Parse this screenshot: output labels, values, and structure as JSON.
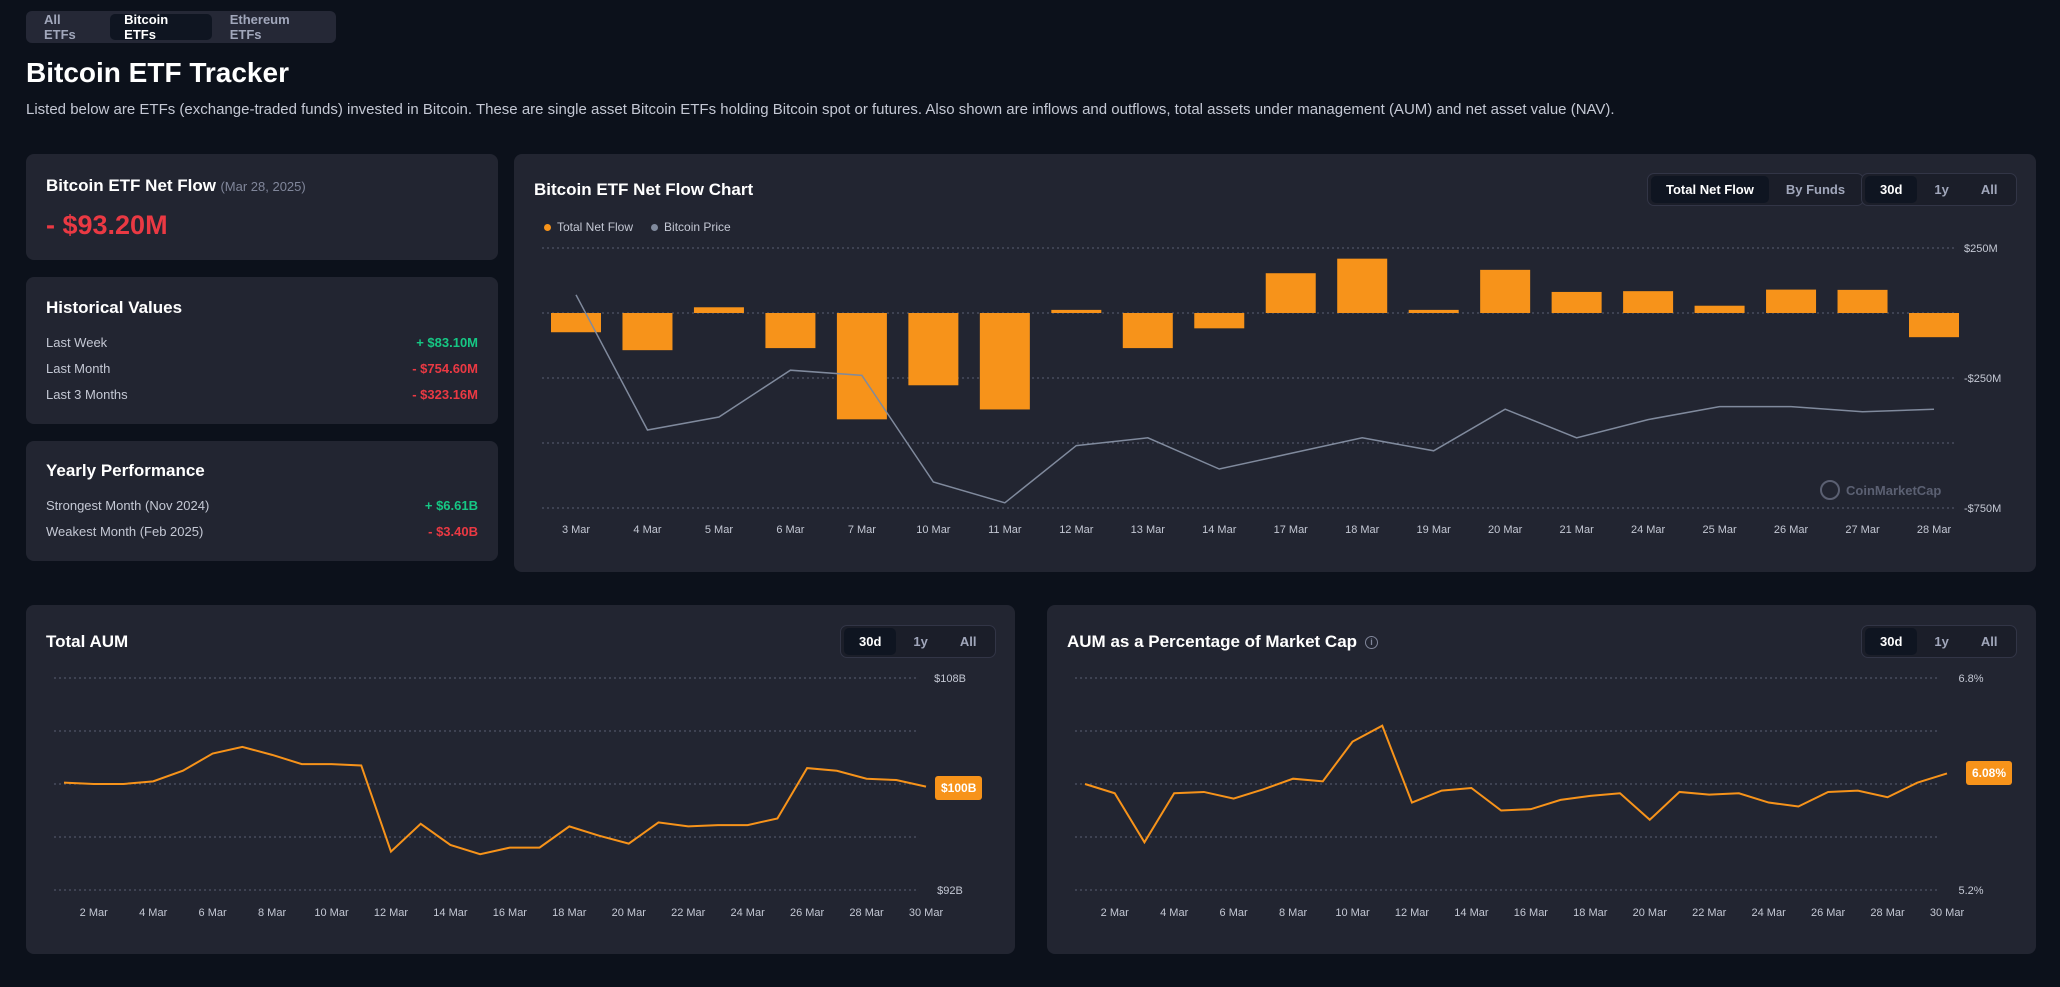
{
  "tabs": [
    "All ETFs",
    "Bitcoin ETFs",
    "Ethereum ETFs"
  ],
  "page": {
    "title": "Bitcoin ETF Tracker",
    "description": "Listed below are ETFs (exchange-traded funds) invested in Bitcoin. These are single asset Bitcoin ETFs holding Bitcoin spot or futures. Also shown are inflows and outflows, total assets under management (AUM) and net asset value (NAV)."
  },
  "net_flow_card": {
    "title": "Bitcoin ETF Net Flow",
    "date": "(Mar 28, 2025)",
    "value": "- $93.20M"
  },
  "historical": {
    "title": "Historical Values",
    "rows": [
      {
        "label": "Last Week",
        "value": "+ $83.10M"
      },
      {
        "label": "Last Month",
        "value": "- $754.60M"
      },
      {
        "label": "Last 3 Months",
        "value": "- $323.16M"
      }
    ]
  },
  "yearly": {
    "title": "Yearly Performance",
    "rows": [
      {
        "label": "Strongest Month (Nov 2024)",
        "value": "+ $6.61B"
      },
      {
        "label": "Weakest Month (Feb 2025)",
        "value": "- $3.40B"
      }
    ]
  },
  "net_flow_chart": {
    "title": "Bitcoin ETF Net Flow Chart",
    "view_toggle": [
      "Total Net Flow",
      "By Funds"
    ],
    "range_toggle": [
      "30d",
      "1y",
      "All"
    ],
    "legend": [
      "Total Net Flow",
      "Bitcoin Price"
    ],
    "watermark": "CoinMarketCap"
  },
  "aum_chart": {
    "title": "Total AUM",
    "range_toggle": [
      "30d",
      "1y",
      "All"
    ],
    "current_label": "$100B"
  },
  "aum_pct_chart": {
    "title": "AUM as a Percentage of Market Cap",
    "info_icon": "info-icon",
    "range_toggle": [
      "30d",
      "1y",
      "All"
    ],
    "current_label": "6.08%"
  },
  "colors": {
    "bg": "#0c111b",
    "card": "#222531",
    "accent": "#f7931a",
    "neg": "#ea3943",
    "pos": "#16c784",
    "price_line": "#808a9d"
  },
  "chart_data": [
    {
      "type": "bar",
      "title": "Bitcoin ETF Net Flow Chart",
      "categories": [
        "3 Mar",
        "4 Mar",
        "5 Mar",
        "6 Mar",
        "7 Mar",
        "10 Mar",
        "11 Mar",
        "12 Mar",
        "13 Mar",
        "14 Mar",
        "17 Mar",
        "18 Mar",
        "19 Mar",
        "20 Mar",
        "21 Mar",
        "24 Mar",
        "25 Mar",
        "26 Mar",
        "27 Mar",
        "28 Mar"
      ],
      "series": [
        {
          "name": "Total Net Flow",
          "values": [
            -74,
            -143,
            22,
            -135,
            -409,
            -278,
            -371,
            12,
            -135,
            -59,
            153,
            209,
            12,
            166,
            81,
            84,
            28,
            90,
            89,
            -93
          ]
        },
        {
          "name": "Bitcoin Price",
          "values": [
            0.82,
            0.3,
            0.35,
            0.53,
            0.51,
            0.1,
            0.02,
            0.24,
            0.27,
            0.15,
            0.21,
            0.27,
            0.22,
            0.38,
            0.27,
            0.34,
            0.39,
            0.39,
            0.37,
            0.38
          ]
        }
      ],
      "y_ticks": [
        "$250M",
        "-$250M",
        "-$750M"
      ],
      "ylim": [
        -750,
        250
      ]
    },
    {
      "type": "line",
      "title": "Total AUM",
      "x_ticks": [
        "2 Mar",
        "4 Mar",
        "6 Mar",
        "8 Mar",
        "10 Mar",
        "12 Mar",
        "14 Mar",
        "16 Mar",
        "18 Mar",
        "20 Mar",
        "22 Mar",
        "24 Mar",
        "26 Mar",
        "28 Mar",
        "30 Mar"
      ],
      "values": [
        100.1,
        100.0,
        100.0,
        100.2,
        101.0,
        102.3,
        102.8,
        102.2,
        101.5,
        101.5,
        101.4,
        94.9,
        97.0,
        95.4,
        94.7,
        95.2,
        95.2,
        96.8,
        96.1,
        95.5,
        97.1,
        96.8,
        96.9,
        96.9,
        97.4,
        101.2,
        101.0,
        100.4,
        100.3,
        99.8
      ],
      "y_ticks": [
        "$108B",
        "$92B"
      ],
      "ylim": [
        92,
        108
      ]
    },
    {
      "type": "line",
      "title": "AUM as a Percentage of Market Cap",
      "x_ticks": [
        "2 Mar",
        "4 Mar",
        "6 Mar",
        "8 Mar",
        "10 Mar",
        "12 Mar",
        "14 Mar",
        "16 Mar",
        "18 Mar",
        "20 Mar",
        "22 Mar",
        "24 Mar",
        "26 Mar",
        "28 Mar",
        "30 Mar"
      ],
      "values": [
        6.0,
        5.93,
        5.56,
        5.93,
        5.94,
        5.89,
        5.96,
        6.04,
        6.02,
        6.32,
        6.44,
        5.86,
        5.95,
        5.97,
        5.8,
        5.81,
        5.88,
        5.91,
        5.93,
        5.73,
        5.94,
        5.92,
        5.93,
        5.86,
        5.83,
        5.94,
        5.95,
        5.9,
        6.01,
        6.08
      ],
      "y_ticks": [
        "6.8%",
        "5.2%"
      ],
      "ylim": [
        5.2,
        6.8
      ]
    }
  ]
}
